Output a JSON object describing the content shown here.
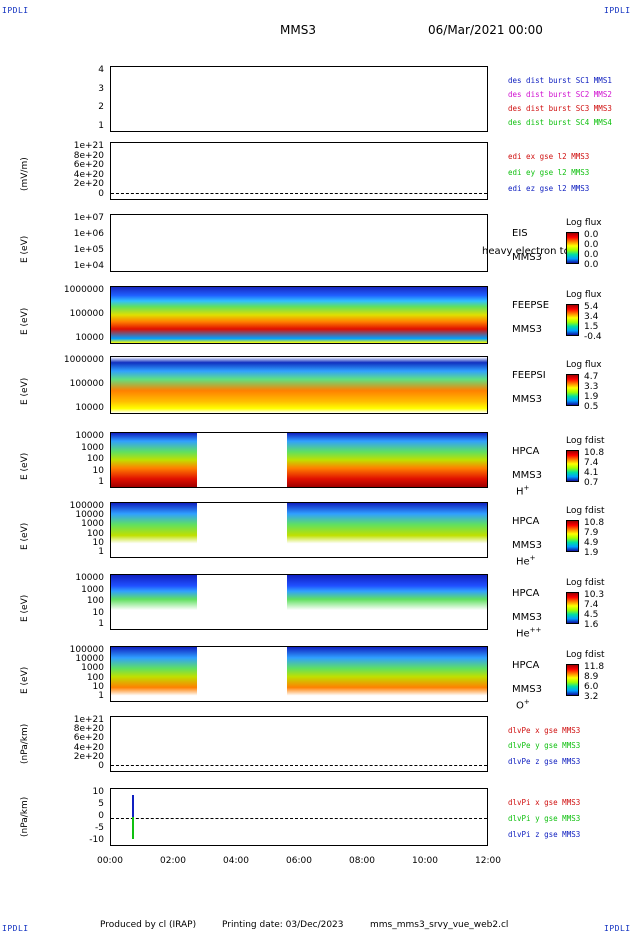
{
  "header": {
    "left_logo": "IPDLI",
    "right_logo": "IPDLI",
    "spacecraft": "MMS3",
    "datetime": "06/Mar/2021 00:00"
  },
  "footer": {
    "left_logo": "IPDLI",
    "right_logo": "IPDLI",
    "produced_by": "Produced by cl (IRAP)",
    "printing_date": "Printing date: 03/Dec/2023",
    "filename": "mms_mms3_srvy_vue_web2.cl"
  },
  "x_axis": {
    "ticks": [
      "00:00",
      "02:00",
      "04:00",
      "06:00",
      "08:00",
      "10:00",
      "12:00"
    ]
  },
  "colors": {
    "red": "#d01010",
    "green": "#10c010",
    "blue": "#1020c0",
    "magenta": "#d010d0"
  },
  "chart_data": [
    {
      "type": "line",
      "title": "",
      "ylabel": "",
      "yticks": [
        "4",
        "3",
        "2",
        "1"
      ],
      "legend": [
        "des dist burst SC1 MMS1",
        "des dist burst SC2 MMS2",
        "des dist burst SC3 MMS3",
        "des dist burst SC4 MMS4"
      ],
      "legend_colors": [
        "#1020c0",
        "#d010d0",
        "#d01010",
        "#10c010"
      ]
    },
    {
      "type": "line",
      "ylabel": "(mV/m)",
      "yticks": [
        "1e+21",
        "8e+20",
        "6e+20",
        "4e+20",
        "2e+20",
        "0"
      ],
      "legend": [
        "edi ex gse l2 MMS3",
        "edi ey gse l2 MMS3",
        "edi ez gse l2 MMS3"
      ],
      "legend_colors": [
        "#d01010",
        "#10c010",
        "#1020c0"
      ]
    },
    {
      "type": "heatmap",
      "ylabel": "E (eV)",
      "yticks": [
        "1e+07",
        "1e+06",
        "1e+05",
        "1e+04"
      ],
      "instrument": "EIS",
      "overlay": "heavy electron to",
      "sc": "MMS3",
      "cb_title": "Log flux",
      "cb_values": [
        "0.0",
        "0.0",
        "0.0",
        "0.0"
      ]
    },
    {
      "type": "heatmap",
      "ylabel": "E (eV)",
      "yticks": [
        "1000000",
        "100000",
        "10000"
      ],
      "instrument": "FEEPSE",
      "sc": "MMS3",
      "cb_title": "Log flux",
      "cb_values": [
        "5.4",
        "3.4",
        "1.5",
        "-0.4"
      ]
    },
    {
      "type": "heatmap",
      "ylabel": "E (eV)",
      "yticks": [
        "1000000",
        "100000",
        "10000"
      ],
      "instrument": "FEEPSI",
      "sc": "MMS3",
      "cb_title": "Log flux",
      "cb_values": [
        "4.7",
        "3.3",
        "1.9",
        "0.5"
      ]
    },
    {
      "type": "heatmap",
      "ylabel": "E (eV)",
      "yticks": [
        "10000",
        "1000",
        "100",
        "10",
        "1"
      ],
      "instrument": "HPCA",
      "sc": "MMS3",
      "species": "H",
      "species_sup": "+",
      "cb_title": "Log fdist",
      "cb_values": [
        "10.8",
        "7.4",
        "4.1",
        "0.7"
      ]
    },
    {
      "type": "heatmap",
      "ylabel": "E (eV)",
      "yticks": [
        "100000",
        "10000",
        "1000",
        "100",
        "10",
        "1"
      ],
      "instrument": "HPCA",
      "sc": "MMS3",
      "species": "He",
      "species_sup": "+",
      "cb_title": "Log fdist",
      "cb_values": [
        "10.8",
        "7.9",
        "4.9",
        "1.9"
      ]
    },
    {
      "type": "heatmap",
      "ylabel": "E (eV)",
      "yticks": [
        "10000",
        "1000",
        "100",
        "10",
        "1"
      ],
      "instrument": "HPCA",
      "sc": "MMS3",
      "species": "He",
      "species_sup": "++",
      "cb_title": "Log fdist",
      "cb_values": [
        "10.3",
        "7.4",
        "4.5",
        "1.6"
      ]
    },
    {
      "type": "heatmap",
      "ylabel": "E (eV)",
      "yticks": [
        "100000",
        "10000",
        "1000",
        "100",
        "10",
        "1"
      ],
      "instrument": "HPCA",
      "sc": "MMS3",
      "species": "O",
      "species_sup": "+",
      "cb_title": "Log fdist",
      "cb_values": [
        "11.8",
        "8.9",
        "6.0",
        "3.2"
      ]
    },
    {
      "type": "line",
      "ylabel": "(nPa/km)",
      "yticks": [
        "1e+21",
        "8e+20",
        "6e+20",
        "4e+20",
        "2e+20",
        "0"
      ],
      "legend": [
        "dlvPe x gse MMS3",
        "dlvPe y gse MMS3",
        "dlvPe z gse MMS3"
      ],
      "legend_colors": [
        "#d01010",
        "#10c010",
        "#1020c0"
      ]
    },
    {
      "type": "line",
      "ylabel": "(nPa/km)",
      "yticks": [
        "10",
        "5",
        "0",
        "-5",
        "-10"
      ],
      "ylim": [
        -12,
        12
      ],
      "legend": [
        "dlvPi x gse MMS3",
        "dlvPi y gse MMS3",
        "dlvPi z gse MMS3"
      ],
      "legend_colors": [
        "#d01010",
        "#10c010",
        "#1020c0"
      ]
    }
  ]
}
